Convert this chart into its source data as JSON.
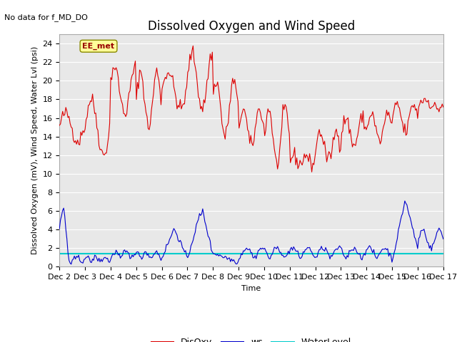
{
  "title": "Dissolved Oxygen and Wind Speed",
  "subtitle": "No data for f_MD_DO",
  "xlabel": "Time",
  "ylabel": "Dissolved Oxygen (mV), Wind Speed, Water Lvl (psi)",
  "xlim": [
    0,
    360
  ],
  "ylim": [
    0,
    25
  ],
  "yticks": [
    0,
    2,
    4,
    6,
    8,
    10,
    12,
    14,
    16,
    18,
    20,
    22,
    24
  ],
  "xtick_labels": [
    "Dec 2",
    "Dec 3",
    "Dec 4",
    "Dec 5",
    "Dec 6",
    "Dec 7",
    "Dec 8",
    "Dec 9",
    "Dec 10",
    "Dec 11",
    "Dec 12",
    "Dec 13",
    "Dec 14",
    "Dec 15",
    "Dec 16",
    "Dec 17"
  ],
  "water_level": 1.4,
  "do_color": "#dd0000",
  "ws_color": "#0000cc",
  "wl_color": "#00cccc",
  "bg_color": "#e8e8e8",
  "fig_bg_color": "#ffffff",
  "annotation_text": "EE_met",
  "title_fontsize": 12,
  "label_fontsize": 8,
  "tick_fontsize": 8
}
